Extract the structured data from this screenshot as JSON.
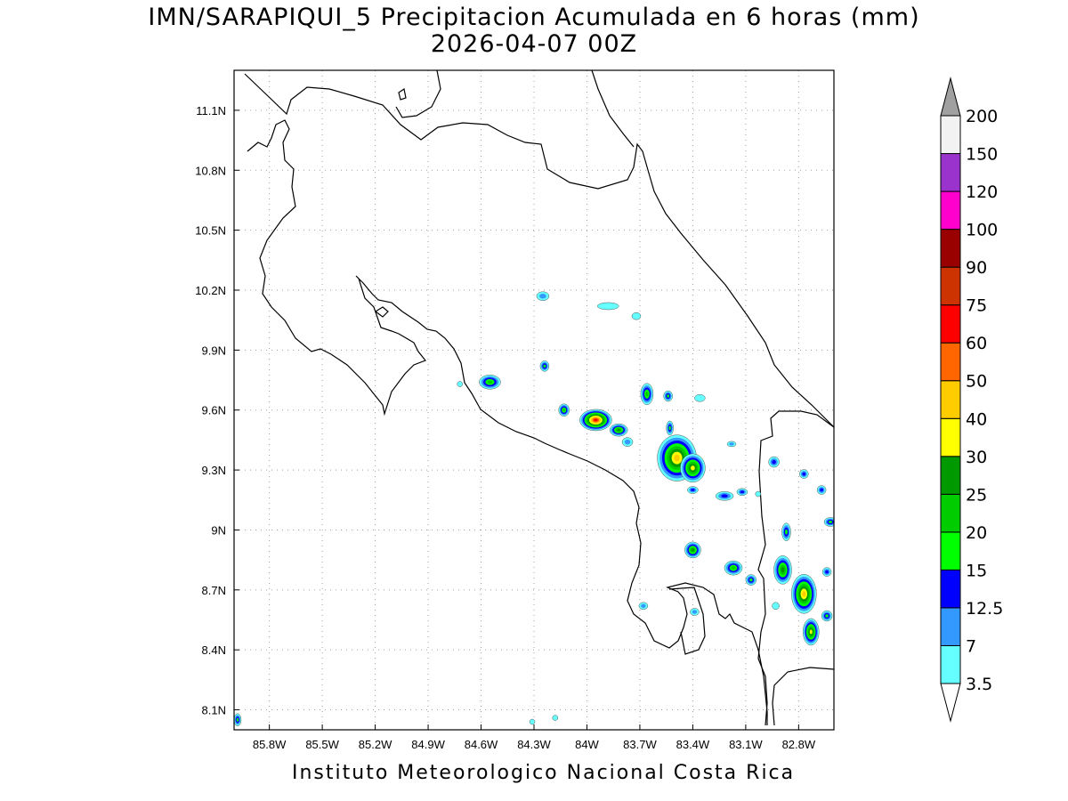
{
  "title": {
    "line1": "IMN/SARAPIQUI_5 Precipitacion Acumulada en 6 horas (mm)",
    "line2": "2026-04-07 00Z"
  },
  "footer": "Instituto Meteorologico Nacional Costa Rica",
  "map": {
    "lon_range": [
      -86.0,
      -82.6
    ],
    "lat_range": [
      8.0,
      11.3
    ],
    "lat_labels": [
      "8.1N",
      "8.4N",
      "8.7N",
      "9N",
      "9.3N",
      "9.6N",
      "9.9N",
      "10.2N",
      "10.5N",
      "10.8N",
      "11.1N"
    ],
    "lon_labels": [
      "85.8W",
      "85.5W",
      "85.2W",
      "84.9W",
      "84.6W",
      "84.3W",
      "84W",
      "83.7W",
      "83.4W",
      "83.1W",
      "82.8W"
    ],
    "grid": true
  },
  "colorbar": {
    "labels": [
      "3.5",
      "7",
      "12.5",
      "15",
      "20",
      "25",
      "30",
      "40",
      "50",
      "60",
      "75",
      "90",
      "100",
      "120",
      "150",
      "200"
    ],
    "colors": [
      "#66ffff",
      "#3399ff",
      "#0000ff",
      "#00ff00",
      "#00cc00",
      "#009900",
      "#ffff00",
      "#ffcc00",
      "#ff6600",
      "#ff0000",
      "#cc3300",
      "#990000",
      "#ff00cc",
      "#9933cc",
      "#f2f2f2",
      "#a0a0a0"
    ]
  }
}
